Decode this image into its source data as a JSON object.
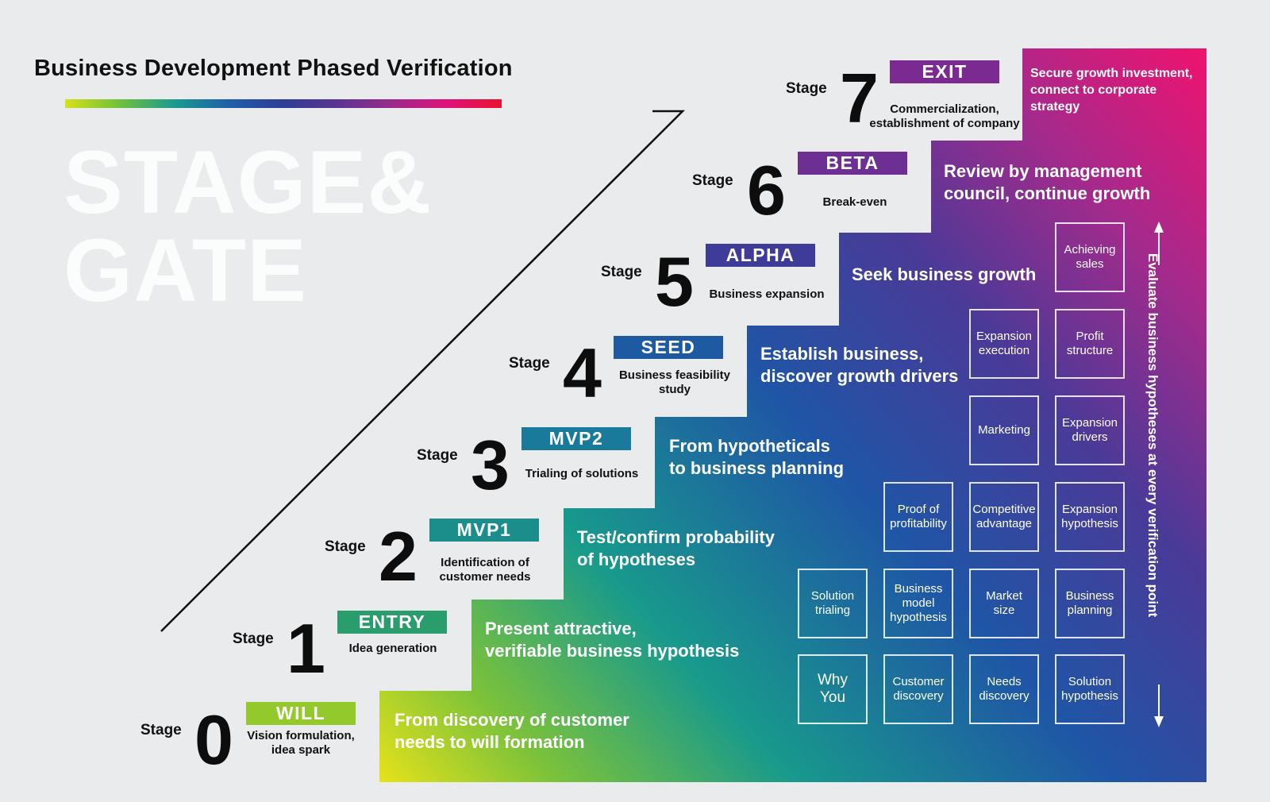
{
  "title": "Business Development Phased Verification",
  "watermark": {
    "line1": "STAGE&",
    "line2": "GATE"
  },
  "colors": {
    "stage0": "#94c92c",
    "stage1": "#2a9d6c",
    "stage2": "#1b8e8c",
    "stage3": "#1a7a9c",
    "stage4": "#1d5aa2",
    "stage5": "#3f3b98",
    "stage6": "#6e2f94",
    "stage7": "#7a2a90",
    "gradient_start": "#e6e21a",
    "gradient_mid": "#1f4fa5",
    "gradient_end": "#e8137a"
  },
  "stages": [
    {
      "label": "Stage",
      "number": "0",
      "badge": "WILL",
      "desc": [
        "Vision formulation,",
        "idea spark"
      ],
      "step": [
        "From discovery of customer",
        "needs to will formation"
      ]
    },
    {
      "label": "Stage",
      "number": "1",
      "badge": "ENTRY",
      "desc": [
        "Idea generation"
      ],
      "step": [
        "Present attractive,",
        "verifiable business hypothesis"
      ]
    },
    {
      "label": "Stage",
      "number": "2",
      "badge": "MVP1",
      "desc": [
        "Identification of",
        "customer needs"
      ],
      "step": [
        "Test/confirm probability",
        "of hypotheses"
      ]
    },
    {
      "label": "Stage",
      "number": "3",
      "badge": "MVP2",
      "desc": [
        "Trialing of solutions"
      ],
      "step": [
        "From hypotheticals",
        "to business planning"
      ]
    },
    {
      "label": "Stage",
      "number": "4",
      "badge": "SEED",
      "desc": [
        "Business feasibility",
        "study"
      ],
      "step": [
        "Establish business,",
        "discover growth drivers"
      ]
    },
    {
      "label": "Stage",
      "number": "5",
      "badge": "ALPHA",
      "desc": [
        "Business expansion"
      ],
      "step": [
        "Seek business growth"
      ]
    },
    {
      "label": "Stage",
      "number": "6",
      "badge": "BETA",
      "desc": [
        "Break-even"
      ],
      "step": [
        "Review by management",
        "council, continue growth"
      ]
    },
    {
      "label": "Stage",
      "number": "7",
      "badge": "EXIT",
      "desc": [
        "Commercialization,",
        "establishment of company"
      ],
      "step": [
        "Secure growth investment,",
        "connect to corporate",
        "strategy"
      ]
    }
  ],
  "boxes": {
    "row0": [
      [
        "Why",
        "You"
      ],
      [
        "Customer",
        "discovery"
      ],
      [
        "Needs",
        "discovery"
      ],
      [
        "Solution",
        "hypothesis"
      ]
    ],
    "row1": [
      [
        "Solution",
        "trialing"
      ],
      [
        "Business",
        "model",
        "hypothesis"
      ],
      [
        "Market",
        "size"
      ],
      [
        "Business",
        "planning"
      ]
    ],
    "row2": [
      [
        "Proof of",
        "profitability"
      ],
      [
        "Competitive",
        "advantage"
      ],
      [
        "Expansion",
        "hypothesis"
      ]
    ],
    "row3": [
      [
        "Marketing"
      ],
      [
        "Expansion",
        "drivers"
      ]
    ],
    "row4": [
      [
        "Expansion",
        "execution"
      ],
      [
        "Profit",
        "structure"
      ]
    ],
    "row5": [
      [
        "Achieving",
        "sales"
      ]
    ]
  },
  "vertical_label": "Evaluate business hypotheses at every verification point"
}
